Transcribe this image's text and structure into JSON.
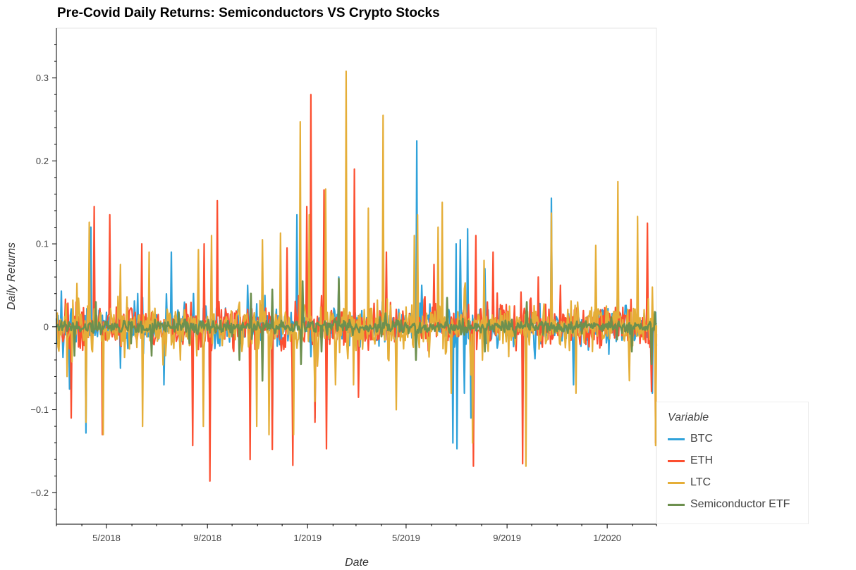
{
  "chart_data": {
    "type": "line",
    "title": "Pre-Covid Daily Returns: Semiconductors VS Crypto Stocks",
    "xlabel": "Date",
    "ylabel": "Daily Returns",
    "x_range": [
      "2018-03-01",
      "2020-03-01"
    ],
    "x_ticks": [
      "5/2018",
      "9/2018",
      "1/2019",
      "5/2019",
      "9/2019",
      "1/2020"
    ],
    "x_tick_dates": [
      "2018-05-01",
      "2018-09-01",
      "2019-01-01",
      "2019-05-01",
      "2019-09-01",
      "2020-01-01"
    ],
    "ylim": [
      -0.238,
      0.36
    ],
    "y_ticks": [
      -0.2,
      -0.1,
      0,
      0.1,
      0.2,
      0.3
    ],
    "y_tick_labels": [
      "−0.2",
      "−0.1",
      "0",
      "0.1",
      "0.2",
      "0.3"
    ],
    "grid": false,
    "legend": {
      "title": "Variable",
      "position": "bottom-right outside"
    },
    "series": [
      {
        "name": "BTC",
        "color": "#30a2da",
        "line_width": 2.2,
        "anchors": [
          [
            "2018-03-01",
            0.01
          ],
          [
            "2018-03-07",
            0.043
          ],
          [
            "2018-03-17",
            -0.075
          ],
          [
            "2018-04-06",
            -0.128
          ],
          [
            "2018-04-12",
            0.12
          ],
          [
            "2018-06-08",
            0.04
          ],
          [
            "2018-07-10",
            -0.07
          ],
          [
            "2018-07-19",
            0.09
          ],
          [
            "2018-08-15",
            0.04
          ],
          [
            "2018-09-04",
            -0.135
          ],
          [
            "2018-10-20",
            0.05
          ],
          [
            "2018-11-19",
            -0.13
          ],
          [
            "2018-12-19",
            0.135
          ],
          [
            "2019-01-10",
            -0.11
          ],
          [
            "2019-02-08",
            0.06
          ],
          [
            "2019-04-02",
            0.03
          ],
          [
            "2019-05-14",
            0.224
          ],
          [
            "2019-05-20",
            0.05
          ],
          [
            "2019-06-27",
            -0.14
          ],
          [
            "2019-07-01",
            0.1
          ],
          [
            "2019-07-02",
            -0.147
          ],
          [
            "2019-07-06",
            0.105
          ],
          [
            "2019-07-11",
            -0.08
          ],
          [
            "2019-07-15",
            0.118
          ],
          [
            "2019-07-19",
            -0.11
          ],
          [
            "2019-08-05",
            0.07
          ],
          [
            "2019-09-20",
            -0.11
          ],
          [
            "2019-10-25",
            0.155
          ],
          [
            "2019-11-21",
            -0.07
          ],
          [
            "2020-01-14",
            0.073
          ],
          [
            "2020-02-25",
            -0.08
          ]
        ]
      },
      {
        "name": "ETH",
        "color": "#fc4f30",
        "line_width": 2.2,
        "anchors": [
          [
            "2018-03-01",
            0.005
          ],
          [
            "2018-03-19",
            -0.11
          ],
          [
            "2018-04-16",
            0.145
          ],
          [
            "2018-04-26",
            -0.13
          ],
          [
            "2018-05-05",
            0.135
          ],
          [
            "2018-06-13",
            0.1
          ],
          [
            "2018-08-14",
            -0.143
          ],
          [
            "2018-08-28",
            0.1
          ],
          [
            "2018-09-04",
            -0.186
          ],
          [
            "2018-09-13",
            0.152
          ],
          [
            "2018-10-23",
            -0.16
          ],
          [
            "2018-11-19",
            -0.148
          ],
          [
            "2018-12-07",
            0.095
          ],
          [
            "2018-12-14",
            -0.167
          ],
          [
            "2018-12-31",
            0.145
          ],
          [
            "2019-01-05",
            0.28
          ],
          [
            "2019-01-10",
            -0.115
          ],
          [
            "2019-01-21",
            0.165
          ],
          [
            "2019-01-24",
            -0.147
          ],
          [
            "2019-02-13",
            0.018
          ],
          [
            "2019-02-27",
            0.19
          ],
          [
            "2019-03-04",
            -0.085
          ],
          [
            "2019-04-07",
            0.09
          ],
          [
            "2019-06-04",
            0.075
          ],
          [
            "2019-07-22",
            -0.168
          ],
          [
            "2019-07-25",
            0.11
          ],
          [
            "2019-08-15",
            0.09
          ],
          [
            "2019-09-20",
            -0.165
          ],
          [
            "2019-10-09",
            0.06
          ],
          [
            "2019-11-05",
            0.05
          ],
          [
            "2020-01-14",
            0.07
          ],
          [
            "2020-02-19",
            0.125
          ],
          [
            "2020-02-24",
            -0.078
          ],
          [
            "2020-02-29",
            -0.14
          ]
        ]
      },
      {
        "name": "LTC",
        "color": "#e5ae38",
        "line_width": 2.2,
        "anchors": [
          [
            "2018-03-01",
            0.015
          ],
          [
            "2018-03-14",
            -0.06
          ],
          [
            "2018-04-06",
            -0.115
          ],
          [
            "2018-04-10",
            0.126
          ],
          [
            "2018-04-27",
            -0.13
          ],
          [
            "2018-05-18",
            0.075
          ],
          [
            "2018-06-14",
            -0.12
          ],
          [
            "2018-06-22",
            0.09
          ],
          [
            "2018-07-30",
            -0.04
          ],
          [
            "2018-08-21",
            0.093
          ],
          [
            "2018-08-27",
            -0.12
          ],
          [
            "2018-09-06",
            0.11
          ],
          [
            "2018-10-31",
            -0.12
          ],
          [
            "2018-11-07",
            0.105
          ],
          [
            "2018-11-15",
            -0.13
          ],
          [
            "2018-11-29",
            0.113
          ],
          [
            "2018-12-15",
            -0.13
          ],
          [
            "2018-12-23",
            0.247
          ],
          [
            "2019-01-03",
            0.135
          ],
          [
            "2019-01-10",
            -0.09
          ],
          [
            "2019-01-23",
            0.166
          ],
          [
            "2019-02-04",
            -0.07
          ],
          [
            "2019-02-17",
            0.308
          ],
          [
            "2019-02-26",
            -0.07
          ],
          [
            "2019-03-16",
            0.143
          ],
          [
            "2019-04-03",
            0.255
          ],
          [
            "2019-04-19",
            -0.1
          ],
          [
            "2019-05-11",
            0.11
          ],
          [
            "2019-05-15",
            0.135
          ],
          [
            "2019-06-09",
            0.12
          ],
          [
            "2019-06-14",
            0.15
          ],
          [
            "2019-06-25",
            -0.08
          ],
          [
            "2019-07-19",
            -0.058
          ],
          [
            "2019-07-21",
            -0.14
          ],
          [
            "2019-08-04",
            0.08
          ],
          [
            "2019-09-24",
            -0.168
          ],
          [
            "2019-10-25",
            0.137
          ],
          [
            "2019-11-24",
            -0.08
          ],
          [
            "2019-12-18",
            0.098
          ],
          [
            "2020-01-14",
            0.175
          ],
          [
            "2020-01-28",
            -0.065
          ],
          [
            "2020-02-07",
            0.133
          ],
          [
            "2020-02-29",
            -0.143
          ]
        ]
      },
      {
        "name": "Semiconductor ETF",
        "color": "#6d904f",
        "line_width": 2.6,
        "anchors": [
          [
            "2018-03-01",
            0.0
          ],
          [
            "2018-03-23",
            -0.035
          ],
          [
            "2018-04-18",
            0.03
          ],
          [
            "2018-05-31",
            -0.02
          ],
          [
            "2018-06-25",
            -0.035
          ],
          [
            "2018-08-10",
            -0.02
          ],
          [
            "2018-10-10",
            -0.04
          ],
          [
            "2018-10-24",
            0.04
          ],
          [
            "2018-11-07",
            -0.065
          ],
          [
            "2018-11-19",
            0.045
          ],
          [
            "2018-12-24",
            -0.045
          ],
          [
            "2018-12-26",
            0.055
          ],
          [
            "2019-01-18",
            -0.03
          ],
          [
            "2019-02-08",
            0.058
          ],
          [
            "2019-05-13",
            -0.04
          ],
          [
            "2019-06-20",
            0.035
          ],
          [
            "2019-08-05",
            -0.03
          ],
          [
            "2019-09-25",
            0.03
          ],
          [
            "2020-01-31",
            -0.03
          ],
          [
            "2020-02-24",
            -0.045
          ],
          [
            "2020-02-28",
            0.018
          ]
        ]
      }
    ]
  }
}
